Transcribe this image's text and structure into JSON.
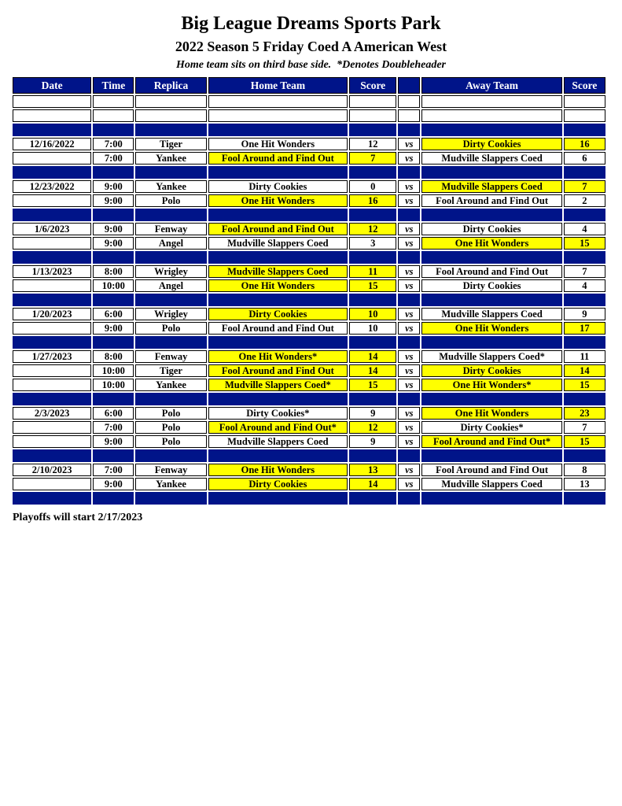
{
  "header": {
    "title": "Big League Dreams Sports Park",
    "subtitle": "2022 Season 5 Friday Coed A American West",
    "note": "Home team sits on third base side.  *Denotes Doubleheader"
  },
  "footer": {
    "text": "Playoffs will start 2/17/2023"
  },
  "colors": {
    "navy": "#001489",
    "highlight_yellow": "#FFFF00",
    "header_text": "#FFFFFF",
    "border": "#000000"
  },
  "table": {
    "columns": [
      "Date",
      "Time",
      "Replica",
      "Home Team",
      "Score",
      "",
      "Away Team",
      "Score"
    ],
    "column_keys": [
      "date",
      "time",
      "replica",
      "home-team",
      "home-score",
      "vs",
      "away-team",
      "away-score"
    ],
    "vs_label": "vs",
    "rows": [
      {
        "type": "blank"
      },
      {
        "type": "blank"
      },
      {
        "type": "sep"
      },
      {
        "type": "game",
        "date": "12/16/2022",
        "time": "7:00",
        "replica": "Tiger",
        "home": "One Hit Wonders",
        "home_score": "12",
        "home_hl": false,
        "away": "Dirty Cookies",
        "away_score": "16",
        "away_hl": true
      },
      {
        "type": "game",
        "date": "",
        "time": "7:00",
        "replica": "Yankee",
        "home": "Fool Around and Find Out",
        "home_score": "7",
        "home_hl": true,
        "away": "Mudville Slappers Coed",
        "away_score": "6",
        "away_hl": false
      },
      {
        "type": "sep"
      },
      {
        "type": "game",
        "date": "12/23/2022",
        "time": "9:00",
        "replica": "Yankee",
        "home": "Dirty Cookies",
        "home_score": "0",
        "home_hl": false,
        "away": "Mudville Slappers Coed",
        "away_score": "7",
        "away_hl": true
      },
      {
        "type": "game",
        "date": "",
        "time": "9:00",
        "replica": "Polo",
        "home": "One Hit Wonders",
        "home_score": "16",
        "home_hl": true,
        "away": "Fool Around and Find Out",
        "away_score": "2",
        "away_hl": false
      },
      {
        "type": "sep"
      },
      {
        "type": "game",
        "date": "1/6/2023",
        "time": "9:00",
        "replica": "Fenway",
        "home": "Fool Around and Find Out",
        "home_score": "12",
        "home_hl": true,
        "away": "Dirty Cookies",
        "away_score": "4",
        "away_hl": false
      },
      {
        "type": "game",
        "date": "",
        "time": "9:00",
        "replica": "Angel",
        "home": "Mudville Slappers Coed",
        "home_score": "3",
        "home_hl": false,
        "away": "One Hit Wonders",
        "away_score": "15",
        "away_hl": true
      },
      {
        "type": "sep"
      },
      {
        "type": "game",
        "date": "1/13/2023",
        "time": "8:00",
        "replica": "Wrigley",
        "home": "Mudville Slappers Coed",
        "home_score": "11",
        "home_hl": true,
        "away": "Fool Around and Find Out",
        "away_score": "7",
        "away_hl": false
      },
      {
        "type": "game",
        "date": "",
        "time": "10:00",
        "replica": "Angel",
        "home": "One Hit Wonders",
        "home_score": "15",
        "home_hl": true,
        "away": "Dirty Cookies",
        "away_score": "4",
        "away_hl": false
      },
      {
        "type": "sep"
      },
      {
        "type": "game",
        "date": "1/20/2023",
        "time": "6:00",
        "replica": "Wrigley",
        "home": "Dirty Cookies",
        "home_score": "10",
        "home_hl": true,
        "away": "Mudville Slappers Coed",
        "away_score": "9",
        "away_hl": false
      },
      {
        "type": "game",
        "date": "",
        "time": "9:00",
        "replica": "Polo",
        "home": "Fool Around and Find Out",
        "home_score": "10",
        "home_hl": false,
        "away": "One Hit Wonders",
        "away_score": "17",
        "away_hl": true
      },
      {
        "type": "sep"
      },
      {
        "type": "game",
        "date": "1/27/2023",
        "time": "8:00",
        "replica": "Fenway",
        "home": "One Hit Wonders*",
        "home_score": "14",
        "home_hl": true,
        "away": "Mudville Slappers Coed*",
        "away_score": "11",
        "away_hl": false
      },
      {
        "type": "game",
        "date": "",
        "time": "10:00",
        "replica": "Tiger",
        "home": "Fool Around and Find Out",
        "home_score": "14",
        "home_hl": true,
        "away": "Dirty Cookies",
        "away_score": "14",
        "away_hl": true
      },
      {
        "type": "game",
        "date": "",
        "time": "10:00",
        "replica": "Yankee",
        "home": "Mudville Slappers Coed*",
        "home_score": "15",
        "home_hl": true,
        "away": "One Hit Wonders*",
        "away_score": "15",
        "away_hl": true
      },
      {
        "type": "sep"
      },
      {
        "type": "game",
        "date": "2/3/2023",
        "time": "6:00",
        "replica": "Polo",
        "home": "Dirty Cookies*",
        "home_score": "9",
        "home_hl": false,
        "away": "One Hit Wonders",
        "away_score": "23",
        "away_hl": true
      },
      {
        "type": "game",
        "date": "",
        "time": "7:00",
        "replica": "Polo",
        "home": "Fool Around and Find Out*",
        "home_score": "12",
        "home_hl": true,
        "away": "Dirty Cookies*",
        "away_score": "7",
        "away_hl": false
      },
      {
        "type": "game",
        "date": "",
        "time": "9:00",
        "replica": "Polo",
        "home": "Mudville Slappers Coed",
        "home_score": "9",
        "home_hl": false,
        "away": "Fool Around and Find Out*",
        "away_score": "15",
        "away_hl": true
      },
      {
        "type": "sep"
      },
      {
        "type": "game",
        "date": "2/10/2023",
        "time": "7:00",
        "replica": "Fenway",
        "home": "One Hit Wonders",
        "home_score": "13",
        "home_hl": true,
        "away": "Fool Around and Find Out",
        "away_score": "8",
        "away_hl": false
      },
      {
        "type": "game",
        "date": "",
        "time": "9:00",
        "replica": "Yankee",
        "home": "Dirty Cookies",
        "home_score": "14",
        "home_hl": true,
        "away": "Mudville Slappers Coed",
        "away_score": "13",
        "away_hl": false
      },
      {
        "type": "sep"
      }
    ]
  }
}
